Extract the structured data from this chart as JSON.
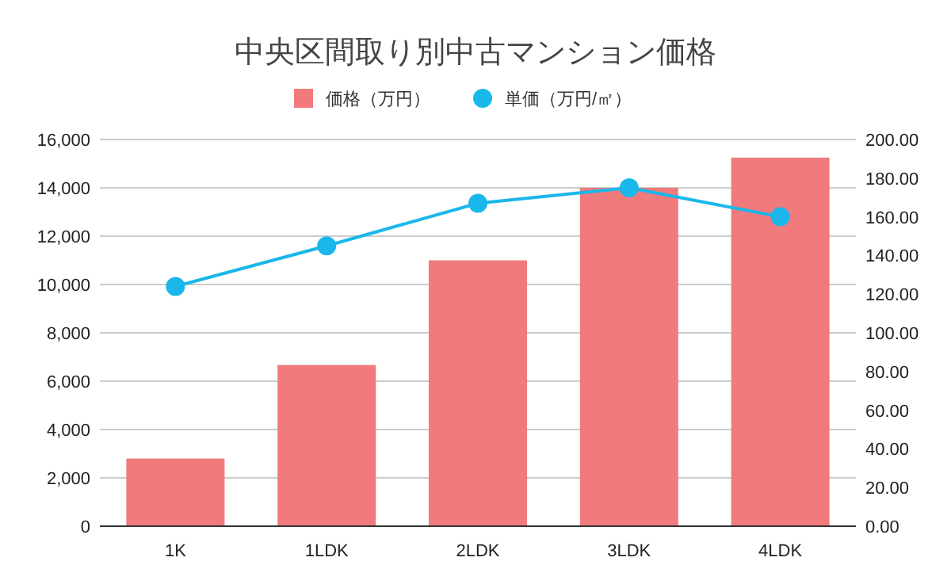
{
  "chart_data": {
    "type": "bar",
    "title": "中央区間取り別中古マンション価格",
    "categories": [
      "1K",
      "1LDK",
      "2LDK",
      "3LDK",
      "4LDK"
    ],
    "series": [
      {
        "name": "価格（万円）",
        "color": "#f07a7c",
        "values": [
          2800,
          6670,
          11000,
          14000,
          15250
        ]
      },
      {
        "name": "単価（万円/㎡）",
        "type": "line",
        "axis": "y2",
        "color": "#1ab7ea",
        "marker": "circle",
        "values": [
          124,
          145,
          167,
          175,
          160
        ]
      }
    ],
    "ylim": [
      0,
      16000
    ],
    "yticks": [
      0,
      {
        "value": 2000,
        "label": "2,000"
      },
      {
        "value": 4000,
        "label": "4,000"
      },
      {
        "value": 6000,
        "label": "6,000"
      },
      {
        "value": 8000,
        "label": "8,000"
      },
      {
        "value": 10000,
        "label": "10,000"
      },
      {
        "value": 12000,
        "label": "12,000"
      },
      {
        "value": 14000,
        "label": "14,000"
      },
      {
        "value": 16000,
        "label": "16,000"
      }
    ],
    "y2lim": [
      0,
      200
    ],
    "y2ticks": [
      {
        "value": 0,
        "label": "0.00"
      },
      {
        "value": 20,
        "label": "20.00"
      },
      {
        "value": 40,
        "label": "40.00"
      },
      {
        "value": 60,
        "label": "60.00"
      },
      {
        "value": 80,
        "label": "80.00"
      },
      {
        "value": 100,
        "label": "100.00"
      },
      {
        "value": 120,
        "label": "120.00"
      },
      {
        "value": 140,
        "label": "140.00"
      },
      {
        "value": 160,
        "label": "160.00"
      },
      {
        "value": 180,
        "label": "180.00"
      },
      {
        "value": 200,
        "label": "200.00"
      }
    ],
    "grid": "y",
    "legend": "top"
  }
}
